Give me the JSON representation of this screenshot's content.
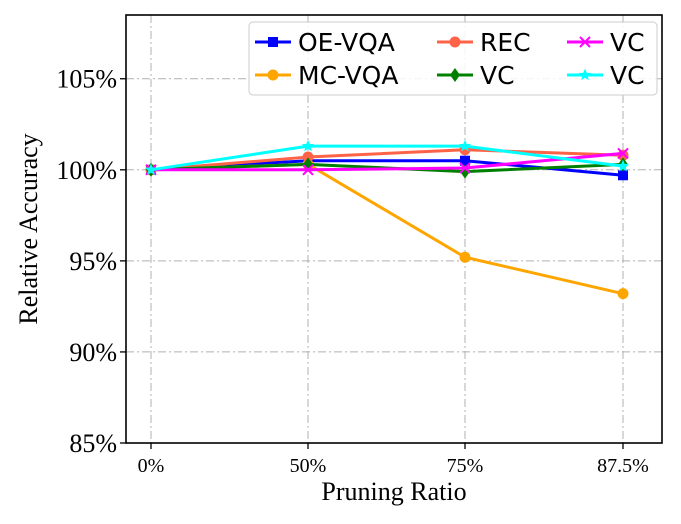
{
  "chart_data": {
    "type": "line",
    "title": "",
    "xlabel": "Pruning Ratio",
    "ylabel": "Relative Accuracy",
    "categories": [
      "0%",
      "50%",
      "75%",
      "87.5%"
    ],
    "ylim": [
      85,
      108.5
    ],
    "yticks": [
      85,
      90,
      95,
      100,
      105
    ],
    "ytick_labels": [
      "85%",
      "90%",
      "95%",
      "100%",
      "105%"
    ],
    "grid": true,
    "legend_position": "top-right",
    "series": [
      {
        "name": "OE-VQA",
        "color": "#0000ff",
        "marker": "square",
        "values": [
          100.0,
          100.5,
          100.5,
          99.7
        ]
      },
      {
        "name": "MC-VQA",
        "color": "#ffa500",
        "marker": "circle",
        "values": [
          100.0,
          100.3,
          95.2,
          93.2
        ]
      },
      {
        "name": "REC",
        "color": "#ff6347",
        "marker": "circle",
        "values": [
          100.0,
          100.7,
          101.1,
          100.8
        ]
      },
      {
        "name": "VC",
        "color": "#008000",
        "marker": "diamond",
        "values": [
          100.0,
          100.3,
          99.9,
          100.3
        ]
      },
      {
        "name": "VC",
        "color": "#ff00ff",
        "marker": "x",
        "values": [
          100.0,
          100.0,
          100.1,
          100.9
        ]
      },
      {
        "name": "VC",
        "color": "#00ffff",
        "marker": "star",
        "values": [
          100.0,
          101.3,
          101.3,
          100.2
        ]
      }
    ]
  }
}
